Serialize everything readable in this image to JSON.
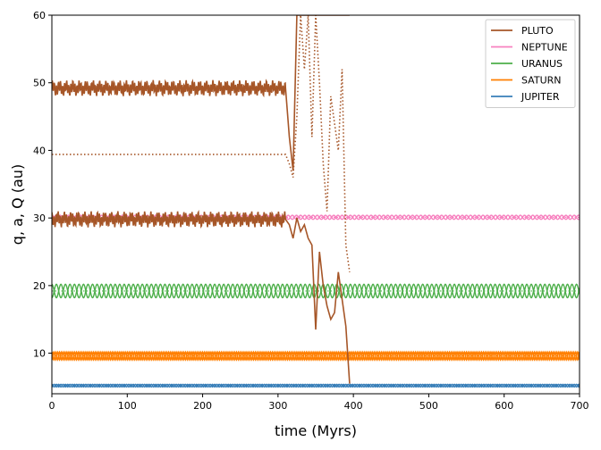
{
  "chart_data": {
    "type": "line",
    "title": "",
    "xlabel": "time (Myrs)",
    "ylabel": "q, a, Q (au)",
    "xlim": [
      0,
      700
    ],
    "ylim": [
      4,
      60
    ],
    "xticks": [
      0,
      100,
      200,
      300,
      400,
      500,
      600,
      700
    ],
    "yticks": [
      10,
      20,
      30,
      40,
      50,
      60
    ],
    "grid": false,
    "legend_position": "top-right",
    "series": [
      {
        "name": "PLUTO",
        "color": "#a65628",
        "t_end": 395,
        "semimajor_axis": {
          "x": [
            0,
            310,
            315,
            320,
            325,
            330,
            335,
            340,
            345,
            350,
            355,
            360,
            365,
            370,
            375,
            380,
            385,
            390,
            395
          ],
          "y": [
            39.4,
            39.4,
            38,
            36,
            45,
            60,
            52,
            60,
            42,
            60,
            50,
            38,
            31,
            48,
            44,
            40,
            52,
            26,
            22
          ]
        },
        "perihelion": {
          "x": [
            0,
            310,
            315,
            320,
            325,
            330,
            335,
            340,
            345,
            350,
            355,
            360,
            365,
            370,
            375,
            380,
            385,
            390,
            395
          ],
          "y": [
            29.8,
            29.8,
            29,
            27,
            30,
            28,
            29,
            27,
            26,
            13.5,
            25,
            20,
            17,
            15,
            16,
            22,
            18,
            14,
            5.5
          ]
        },
        "aphelion": {
          "x": [
            0,
            310,
            315,
            320,
            325,
            330,
            335,
            340,
            345,
            350,
            355,
            360,
            365,
            370,
            375,
            380,
            385,
            390,
            395
          ],
          "y": [
            49.2,
            49.2,
            42,
            37,
            60,
            60,
            60,
            60,
            60,
            60,
            60,
            60,
            60,
            60,
            60,
            60,
            60,
            60,
            60
          ]
        }
      },
      {
        "name": "NEPTUNE",
        "color": "#f781bf",
        "a": 30.1,
        "q_range": [
          29.8,
          30.4
        ],
        "oscillation_period": 11
      },
      {
        "name": "URANUS",
        "color": "#4daf4a",
        "a": 19.2,
        "q_range": [
          18.2,
          20.2
        ],
        "oscillation_period": 12
      },
      {
        "name": "SATURN",
        "color": "#ff7f00",
        "a": 9.6,
        "q_range": [
          9.0,
          10.2
        ],
        "oscillation_period": 5
      },
      {
        "name": "JUPITER",
        "color": "#377eb8",
        "a": 5.2,
        "q_range": [
          5.0,
          5.4
        ],
        "oscillation_period": 6
      }
    ]
  }
}
